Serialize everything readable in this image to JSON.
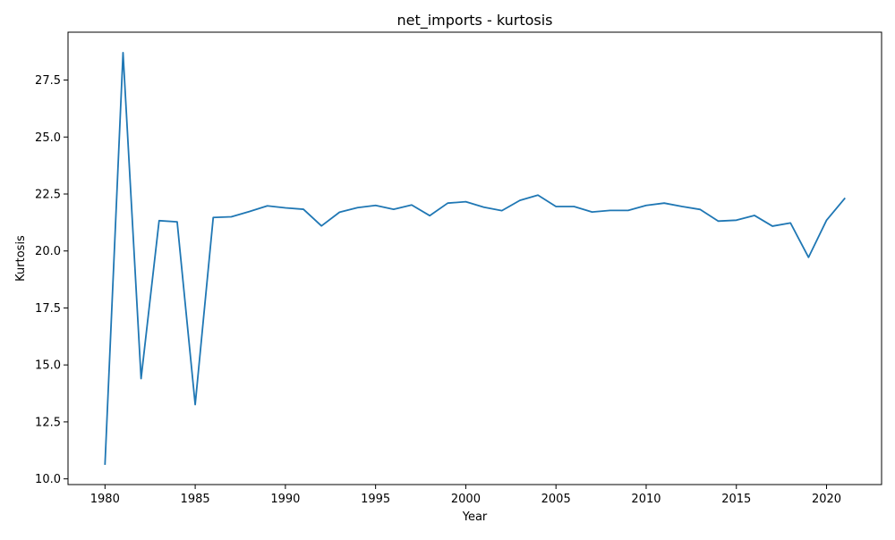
{
  "chart_data": {
    "type": "line",
    "title": "net_imports - kurtosis",
    "xlabel": "Year",
    "ylabel": "Kurtosis",
    "xlim": [
      1977.95,
      2023.05
    ],
    "ylim": [
      9.75,
      29.6
    ],
    "xticks": [
      1980,
      1985,
      1990,
      1995,
      2000,
      2005,
      2010,
      2015,
      2020
    ],
    "xtick_labels": [
      "1980",
      "1985",
      "1990",
      "1995",
      "2000",
      "2005",
      "2010",
      "2015",
      "2020"
    ],
    "yticks": [
      10.0,
      12.5,
      15.0,
      17.5,
      20.0,
      22.5,
      25.0,
      27.5
    ],
    "ytick_labels": [
      "10.0",
      "12.5",
      "15.0",
      "17.5",
      "20.0",
      "22.5",
      "25.0",
      "27.5"
    ],
    "grid": false,
    "legend": "none",
    "series": [
      {
        "color": "#1f77b4",
        "x": [
          1980,
          1981,
          1982,
          1983,
          1984,
          1985,
          1986,
          1987,
          1988,
          1989,
          1990,
          1991,
          1992,
          1993,
          1994,
          1995,
          1996,
          1997,
          1998,
          1999,
          2000,
          2001,
          2002,
          2003,
          2004,
          2005,
          2006,
          2007,
          2008,
          2009,
          2010,
          2011,
          2012,
          2013,
          2014,
          2015,
          2016,
          2017,
          2018,
          2019,
          2020,
          2021
        ],
        "y": [
          10.65,
          28.7,
          14.4,
          21.33,
          21.28,
          13.26,
          21.47,
          21.5,
          21.73,
          21.98,
          21.89,
          21.83,
          21.1,
          21.7,
          21.9,
          22.0,
          21.83,
          22.02,
          21.55,
          22.1,
          22.16,
          21.92,
          21.77,
          22.22,
          22.45,
          21.95,
          21.95,
          21.71,
          21.78,
          21.78,
          22.0,
          22.1,
          21.95,
          21.82,
          21.31,
          21.35,
          21.56,
          21.09,
          21.23,
          19.72,
          21.35,
          22.3
        ]
      }
    ]
  }
}
